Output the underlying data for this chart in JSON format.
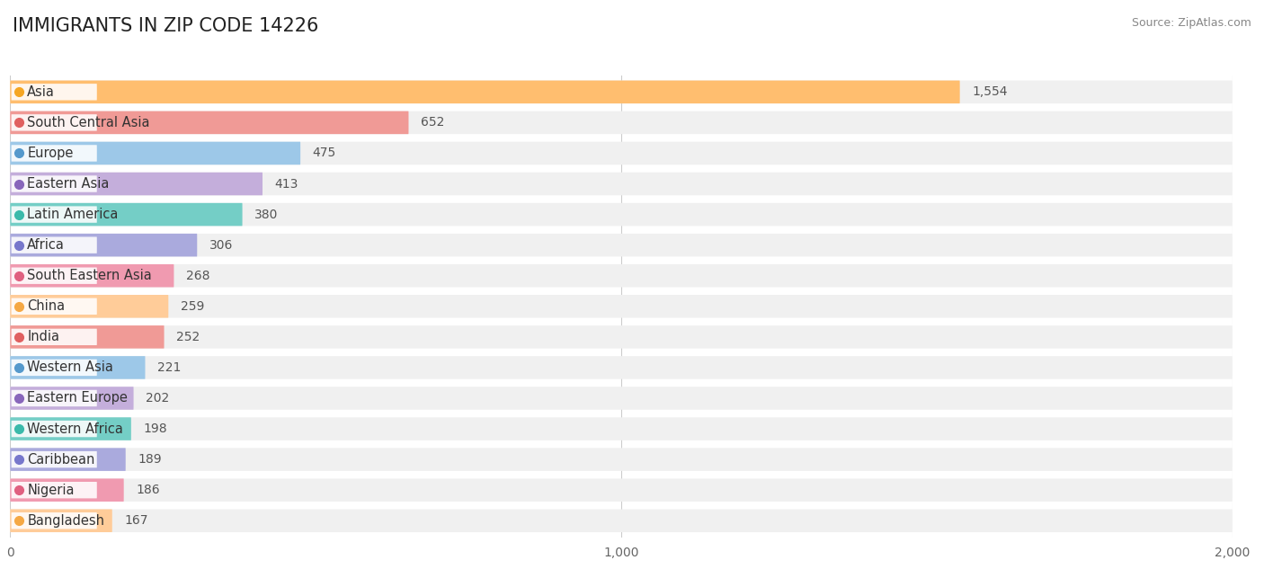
{
  "title": "IMMIGRANTS IN ZIP CODE 14226",
  "source": "Source: ZipAtlas.com",
  "categories": [
    "Asia",
    "South Central Asia",
    "Europe",
    "Eastern Asia",
    "Latin America",
    "Africa",
    "South Eastern Asia",
    "China",
    "India",
    "Western Asia",
    "Eastern Europe",
    "Western Africa",
    "Caribbean",
    "Nigeria",
    "Bangladesh"
  ],
  "values": [
    1554,
    652,
    475,
    413,
    380,
    306,
    268,
    259,
    252,
    221,
    202,
    198,
    189,
    186,
    167
  ],
  "bar_colors": [
    "#FFBE6F",
    "#F09A96",
    "#9DC8E8",
    "#C4AEDB",
    "#74CEC6",
    "#AAAADD",
    "#F09AB0",
    "#FFCC99",
    "#F09A96",
    "#9DC8E8",
    "#C4AEDB",
    "#74CEC6",
    "#AAAADD",
    "#F09AB0",
    "#FFCC99"
  ],
  "dot_colors": [
    "#F5A623",
    "#E06060",
    "#5599CC",
    "#8866BB",
    "#3ABAAA",
    "#7777CC",
    "#E06080",
    "#F5A844",
    "#E06060",
    "#5599CC",
    "#8866BB",
    "#3ABAAA",
    "#7777CC",
    "#E06080",
    "#F5A844"
  ],
  "xlim": [
    0,
    2000
  ],
  "xticks": [
    0,
    1000,
    2000
  ],
  "xtick_labels": [
    "0",
    "1,000",
    "2,000"
  ],
  "background_color": "#ffffff",
  "bar_bg_color": "#f0f0f0",
  "title_fontsize": 15,
  "tick_fontsize": 10,
  "label_fontsize": 10.5,
  "value_fontsize": 10
}
